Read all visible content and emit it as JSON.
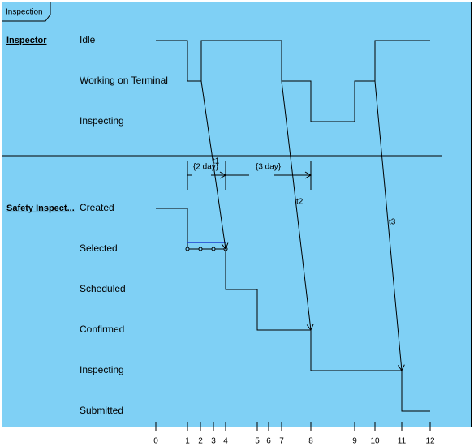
{
  "frame": {
    "title": "Inspection"
  },
  "lifelines": [
    {
      "name": "Inspector",
      "states": [
        "Idle",
        "Working on Terminal",
        "Inspecting"
      ]
    },
    {
      "name": "Safety Inspect...",
      "states": [
        "Created",
        "Selected",
        "Scheduled",
        "Confirmed",
        "Inspecting",
        "Submitted"
      ]
    }
  ],
  "messages": [
    {
      "label": "t1"
    },
    {
      "label": "t2"
    },
    {
      "label": "t3"
    }
  ],
  "durations": [
    {
      "label": "{2 day}"
    },
    {
      "label": "{3 day}"
    }
  ],
  "time_ticks": [
    0,
    1,
    2,
    3,
    4,
    5,
    6,
    7,
    8,
    9,
    10,
    11,
    12
  ]
}
